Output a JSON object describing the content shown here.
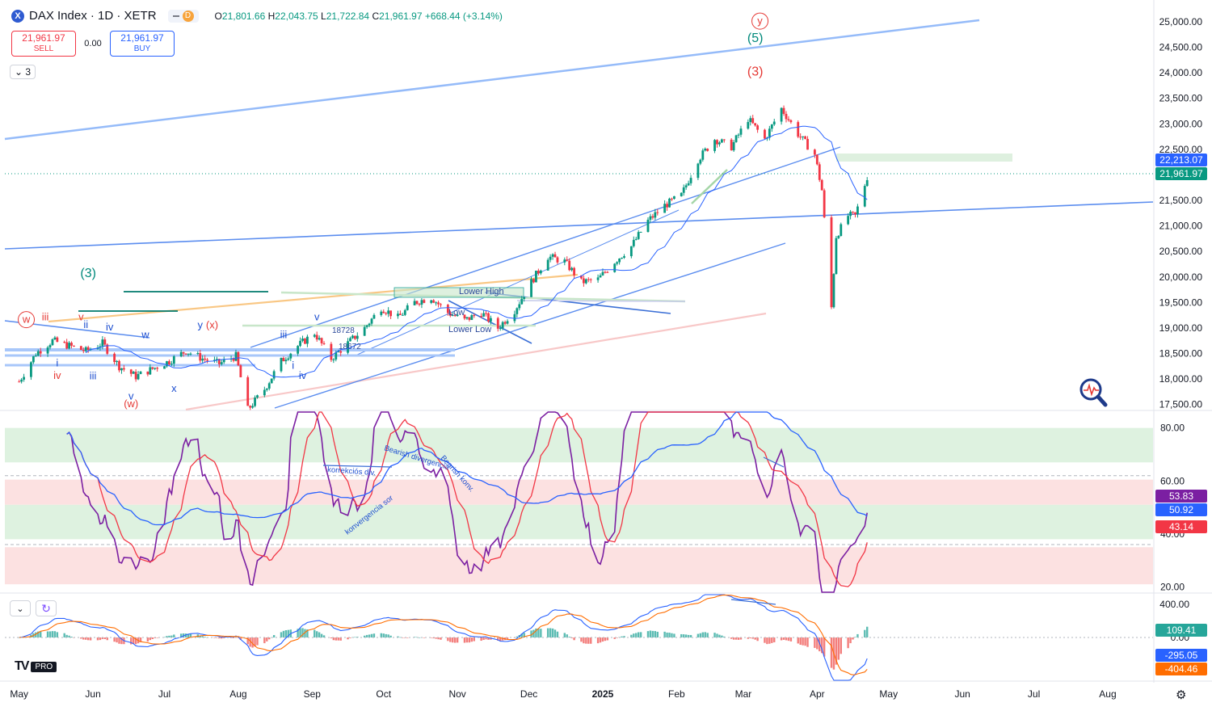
{
  "header": {
    "logo_glyph": "X",
    "symbol_title": "DAX Index · 1D · XETR",
    "dividend_badge": "D",
    "open_label": "O",
    "open": "21,801.66",
    "high_label": "H",
    "high": "22,043.75",
    "low_label": "L",
    "low": "21,722.84",
    "close_label": "C",
    "close": "21,961.97",
    "change": "+668.44 (+3.14%)"
  },
  "trade": {
    "sell_price": "21,961.97",
    "sell_label": "SELL",
    "spread": "0.00",
    "buy_price": "21,961.97",
    "buy_label": "BUY"
  },
  "collapse_label": "3",
  "logo": {
    "mark": "TV",
    "badge": "PRO"
  },
  "colors": {
    "up": "#089981",
    "down": "#f23645",
    "trend": "#5b8def",
    "rsi": "#7b1fa2",
    "rsi_ma": "#f23645",
    "rsi_slow": "#2962ff",
    "macd": "#2962ff",
    "signal": "#ff6d00"
  },
  "chart_data": [
    {
      "type": "candlestick",
      "title": "DAX Index · 1D · XETR",
      "x_ticks": [
        "May",
        "Jun",
        "Jul",
        "Aug",
        "Sep",
        "Oct",
        "Nov",
        "Dec",
        "2025",
        "Feb",
        "Mar",
        "Apr",
        "May",
        "Jun",
        "Jul",
        "Aug"
      ],
      "y_ticks": [
        "25,000.00",
        "24,500.00",
        "24,000.00",
        "23,500.00",
        "23,000.00",
        "22,500.00",
        "22,000.00",
        "21,500.00",
        "21,000.00",
        "20,500.00",
        "20,000.00",
        "19,500.00",
        "19,000.00",
        "18,500.00",
        "18,000.00",
        "17,500.00"
      ],
      "ylim": [
        17400,
        25300
      ],
      "price_path": [
        [
          "2024-05-01",
          17950
        ],
        [
          "2024-05-08",
          18500
        ],
        [
          "2024-05-15",
          18750
        ],
        [
          "2024-05-22",
          18650
        ],
        [
          "2024-05-29",
          18550
        ],
        [
          "2024-06-05",
          18700
        ],
        [
          "2024-06-12",
          18250
        ],
        [
          "2024-06-19",
          18050
        ],
        [
          "2024-06-26",
          18200
        ],
        [
          "2024-07-03",
          18350
        ],
        [
          "2024-07-10",
          18550
        ],
        [
          "2024-07-17",
          18400
        ],
        [
          "2024-07-24",
          18300
        ],
        [
          "2024-07-31",
          18450
        ],
        [
          "2024-08-05",
          17400
        ],
        [
          "2024-08-12",
          17800
        ],
        [
          "2024-08-19",
          18350
        ],
        [
          "2024-08-26",
          18650
        ],
        [
          "2024-09-02",
          18900
        ],
        [
          "2024-09-09",
          18400
        ],
        [
          "2024-09-16",
          18700
        ],
        [
          "2024-09-23",
          19000
        ],
        [
          "2024-09-30",
          19400
        ],
        [
          "2024-10-07",
          19200
        ],
        [
          "2024-10-14",
          19500
        ],
        [
          "2024-10-21",
          19600
        ],
        [
          "2024-10-28",
          19300
        ],
        [
          "2024-11-04",
          19150
        ],
        [
          "2024-11-11",
          19300
        ],
        [
          "2024-11-18",
          19000
        ],
        [
          "2024-11-25",
          19350
        ],
        [
          "2024-12-02",
          19900
        ],
        [
          "2024-12-09",
          20400
        ],
        [
          "2024-12-16",
          20300
        ],
        [
          "2024-12-23",
          19900
        ],
        [
          "2024-12-30",
          19950
        ],
        [
          "2025-01-06",
          20300
        ],
        [
          "2025-01-13",
          20600
        ],
        [
          "2025-01-20",
          21100
        ],
        [
          "2025-01-27",
          21400
        ],
        [
          "2025-02-03",
          21600
        ],
        [
          "2025-02-10",
          22300
        ],
        [
          "2025-02-17",
          22700
        ],
        [
          "2025-02-24",
          22550
        ],
        [
          "2025-03-03",
          23100
        ],
        [
          "2025-03-10",
          22700
        ],
        [
          "2025-03-17",
          23300
        ],
        [
          "2025-03-24",
          22800
        ],
        [
          "2025-03-31",
          22400
        ],
        [
          "2025-04-03",
          21700
        ],
        [
          "2025-04-07",
          19400
        ],
        [
          "2025-04-09",
          20800
        ],
        [
          "2025-04-14",
          21200
        ],
        [
          "2025-04-17",
          21200
        ],
        [
          "2025-04-22",
          21960
        ]
      ],
      "last_price": "21,961.97",
      "level_label": "22,213.07",
      "wave_labels": [
        {
          "text": "y",
          "x": "2025-03-08",
          "y": 24950,
          "color": "red",
          "circle": true
        },
        {
          "text": "(5)",
          "x": "2025-03-06",
          "y": 24600,
          "color": "teal"
        },
        {
          "text": "(3)",
          "x": "2025-03-06",
          "y": 23950,
          "color": "red"
        },
        {
          "text": "(3)",
          "x": "2024-05-30",
          "y": 20000,
          "color": "teal"
        },
        {
          "text": "w",
          "x": "2024-05-04",
          "y": 19100,
          "color": "red",
          "circle": true
        },
        {
          "text": "iii",
          "x": "2024-05-12",
          "y": 19150,
          "color": "red"
        },
        {
          "text": "v",
          "x": "2024-05-27",
          "y": 19150,
          "color": "red"
        },
        {
          "text": "ii",
          "x": "2024-05-29",
          "y": 19000,
          "color": "blue"
        },
        {
          "text": "iv",
          "x": "2024-06-08",
          "y": 18950,
          "color": "blue"
        },
        {
          "text": "w",
          "x": "2024-06-23",
          "y": 18800,
          "color": "blue"
        },
        {
          "text": "y",
          "x": "2024-07-16",
          "y": 18990,
          "color": "blue"
        },
        {
          "text": "(x)",
          "x": "2024-07-21",
          "y": 18990,
          "color": "red"
        },
        {
          "text": "v",
          "x": "2024-09-03",
          "y": 19150,
          "color": "blue"
        },
        {
          "text": "iii",
          "x": "2024-08-20",
          "y": 18800,
          "color": "blue"
        },
        {
          "text": "i",
          "x": "2024-05-17",
          "y": 18250,
          "color": "blue"
        },
        {
          "text": "iv",
          "x": "2024-05-17",
          "y": 18000,
          "color": "red"
        },
        {
          "text": "iii",
          "x": "2024-06-01",
          "y": 17990,
          "color": "blue"
        },
        {
          "text": "x",
          "x": "2024-07-05",
          "y": 17750,
          "color": "blue"
        },
        {
          "text": "v",
          "x": "2024-06-17",
          "y": 17600,
          "color": "blue"
        },
        {
          "text": "(w)",
          "x": "2024-06-17",
          "y": 17450,
          "color": "red"
        },
        {
          "text": "i",
          "x": "2024-08-24",
          "y": 18200,
          "color": "blue"
        },
        {
          "text": "iv",
          "x": "2024-08-28",
          "y": 18000,
          "color": "blue"
        }
      ],
      "text_annotations": [
        "Lower High",
        "Low",
        "Lower Low",
        "18728",
        "18672"
      ]
    },
    {
      "type": "line",
      "title": "",
      "y_ticks": [
        "80.00",
        "60.00",
        "40.00",
        "20.00"
      ],
      "ylim": [
        18,
        86
      ],
      "last_values": {
        "rsi": "53.83",
        "slow": "50.92",
        "ma": "43.14"
      },
      "annotations": [
        "Bearish divergencia",
        "Bearish konv.",
        "korrekciós div.",
        "konvergencia sor"
      ]
    },
    {
      "type": "bar",
      "title": "",
      "y_ticks": [
        "400.00",
        "0.00"
      ],
      "ylim": [
        -520,
        520
      ],
      "last_values": {
        "histogram": "109.41",
        "macd": "-295.05",
        "signal": "-404.46"
      }
    }
  ]
}
